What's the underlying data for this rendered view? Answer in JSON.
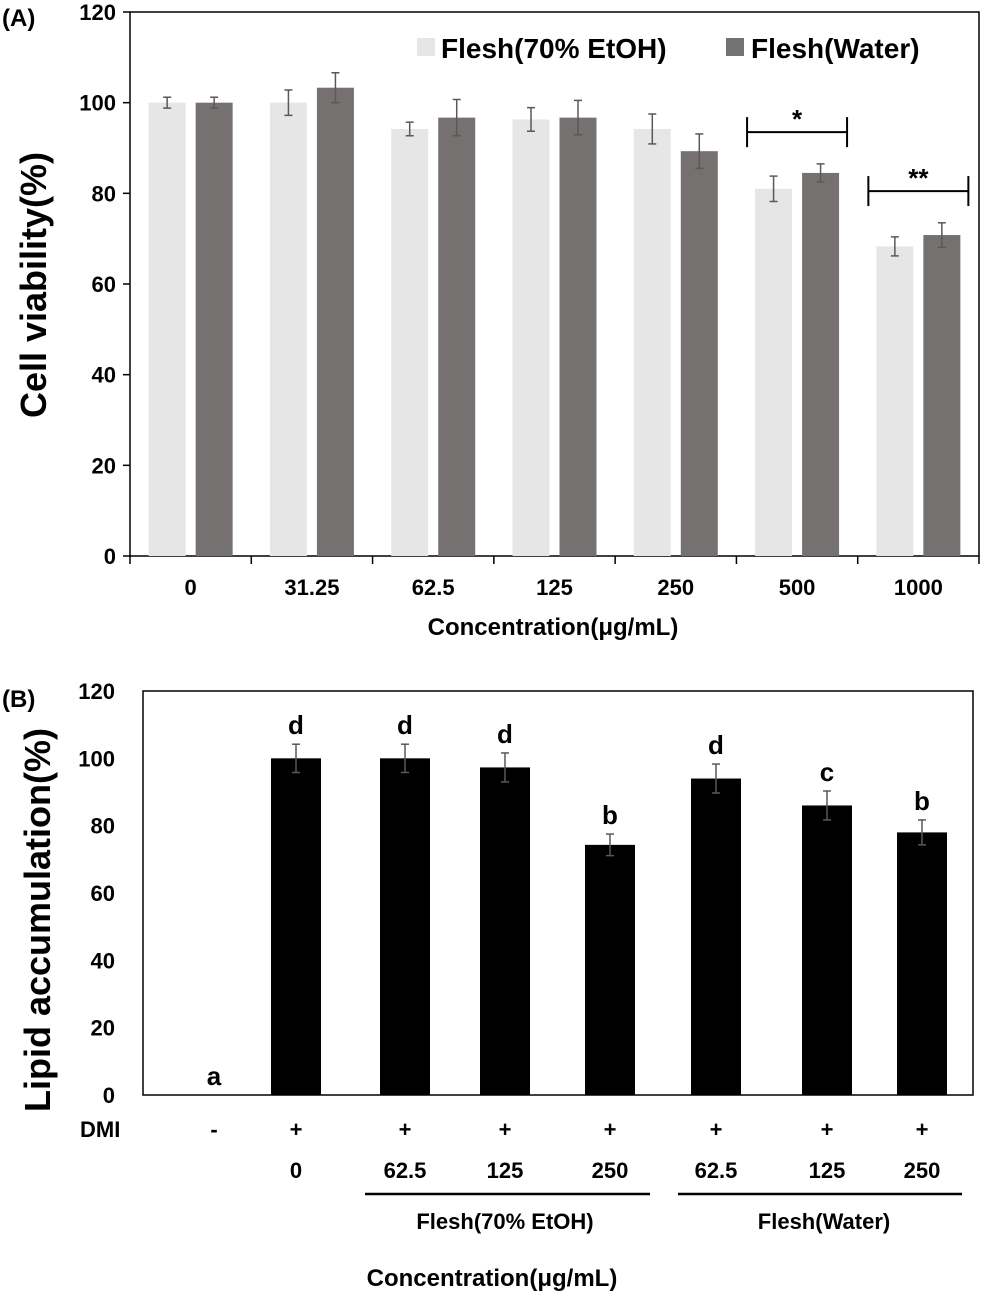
{
  "colors": {
    "etoh": "#e6e6e6",
    "water": "#767171",
    "black": "#000000",
    "errbar": "#595959"
  },
  "chart_data": [
    {
      "panel": "(A)",
      "type": "bar",
      "ylabel": "Cell viability(%)",
      "xlabel": "Concentration(μg/mL)",
      "ylim": [
        0,
        120
      ],
      "yticks": [
        "0",
        "20",
        "40",
        "60",
        "80",
        "100",
        "120"
      ],
      "categories": [
        "0",
        "31.25",
        "62.5",
        "125",
        "250",
        "500",
        "1000"
      ],
      "legend_position": "top-right",
      "series": [
        {
          "name": "Flesh(70% EtOH)",
          "values": [
            100,
            100,
            94.2,
            96.3,
            94.2,
            81,
            68.3
          ],
          "errors": [
            1.2,
            2.8,
            1.5,
            2.6,
            3.3,
            2.8,
            2.1
          ]
        },
        {
          "name": "Flesh(Water)",
          "values": [
            100,
            103.3,
            96.7,
            96.7,
            89.3,
            84.5,
            70.8
          ],
          "errors": [
            1.2,
            3.3,
            4,
            3.8,
            3.8,
            2,
            2.7
          ]
        }
      ],
      "significance": [
        {
          "category": "500",
          "label": "*"
        },
        {
          "category": "1000",
          "label": "**"
        }
      ]
    },
    {
      "panel": "(B)",
      "type": "bar",
      "ylabel": "Lipid accumulation(%)",
      "xlabel": "Concentration(μg/mL)",
      "ylim": [
        0,
        120
      ],
      "yticks": [
        "0",
        "20",
        "40",
        "60",
        "80",
        "100",
        "120"
      ],
      "dmi_label": "DMI",
      "dmi": [
        "-",
        "+",
        "+",
        "+",
        "+",
        "+",
        "+",
        "+"
      ],
      "concentrations": [
        "",
        "0",
        "62.5",
        "125",
        "250",
        "62.5",
        "125",
        "250"
      ],
      "values": [
        0,
        100,
        100,
        97.3,
        74.3,
        94,
        86,
        78
      ],
      "errors": [
        0,
        4.2,
        4.2,
        4.3,
        3.2,
        4.3,
        4.3,
        3.7
      ],
      "letters": [
        "a",
        "d",
        "d",
        "d",
        "b",
        "d",
        "c",
        "b"
      ],
      "groups": [
        {
          "label": "Flesh(70% EtOH)"
        },
        {
          "label": "Flesh(Water)"
        }
      ]
    }
  ]
}
